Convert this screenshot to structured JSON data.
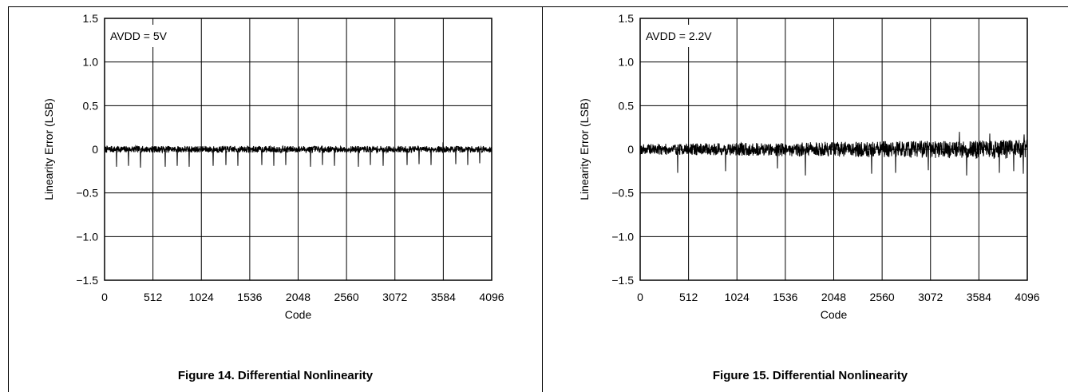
{
  "chart_data": [
    {
      "type": "line",
      "title": "Figure 14. Differential Nonlinearity",
      "annotation": "AVDD = 5V",
      "xlabel": "Code",
      "ylabel": "Linearity Error (LSB)",
      "xlim": [
        0,
        4096
      ],
      "ylim": [
        -1.5,
        1.5
      ],
      "x_ticks": [
        "0",
        "512",
        "1024",
        "1536",
        "2048",
        "2560",
        "3072",
        "3584",
        "4096"
      ],
      "y_ticks": [
        "1.5",
        "1.0",
        "0.5",
        "0",
        "−0.5",
        "−1.0",
        "−1.5"
      ],
      "grid": true,
      "series": [
        {
          "values_description_free": true,
          "noise_band": [
            -0.05,
            0.05
          ],
          "spikes": [
            {
              "x": 128,
              "y": -0.2
            },
            {
              "x": 256,
              "y": -0.19
            },
            {
              "x": 384,
              "y": -0.21
            },
            {
              "x": 640,
              "y": -0.2
            },
            {
              "x": 768,
              "y": -0.19
            },
            {
              "x": 896,
              "y": -0.2
            },
            {
              "x": 1152,
              "y": -0.19
            },
            {
              "x": 1280,
              "y": -0.18
            },
            {
              "x": 1408,
              "y": -0.19
            },
            {
              "x": 1664,
              "y": -0.18
            },
            {
              "x": 1792,
              "y": -0.19
            },
            {
              "x": 1920,
              "y": -0.18
            },
            {
              "x": 2176,
              "y": -0.2
            },
            {
              "x": 2304,
              "y": -0.18
            },
            {
              "x": 2432,
              "y": -0.19
            },
            {
              "x": 2688,
              "y": -0.2
            },
            {
              "x": 2816,
              "y": -0.18
            },
            {
              "x": 2944,
              "y": -0.19
            },
            {
              "x": 3200,
              "y": -0.18
            },
            {
              "x": 3328,
              "y": -0.17
            },
            {
              "x": 3456,
              "y": -0.18
            },
            {
              "x": 3712,
              "y": -0.17
            },
            {
              "x": 3840,
              "y": -0.18
            },
            {
              "x": 3968,
              "y": -0.16
            },
            {
              "x": 3580,
              "y": 0.08
            }
          ]
        }
      ]
    },
    {
      "type": "line",
      "title": "Figure 15. Differential Nonlinearity",
      "annotation": "AVDD = 2.2V",
      "xlabel": "Code",
      "ylabel": "Linearity Error (LSB)",
      "xlim": [
        0,
        4096
      ],
      "ylim": [
        -1.5,
        1.5
      ],
      "x_ticks": [
        "0",
        "512",
        "1024",
        "1536",
        "2048",
        "2560",
        "3072",
        "3584",
        "4096"
      ],
      "y_ticks": [
        "1.5",
        "1.0",
        "0.5",
        "0",
        "−0.5",
        "−1.0",
        "−1.5"
      ],
      "grid": true,
      "series": [
        {
          "noise_band_start": [
            -0.08,
            0.08
          ],
          "noise_band_end": [
            -0.15,
            0.15
          ],
          "spikes": [
            {
              "x": 400,
              "y": -0.27
            },
            {
              "x": 900,
              "y": -0.25
            },
            {
              "x": 1450,
              "y": -0.22
            },
            {
              "x": 1750,
              "y": -0.3
            },
            {
              "x": 2450,
              "y": -0.28
            },
            {
              "x": 2700,
              "y": -0.27
            },
            {
              "x": 3050,
              "y": -0.24
            },
            {
              "x": 3450,
              "y": -0.3
            },
            {
              "x": 3800,
              "y": -0.27
            },
            {
              "x": 3950,
              "y": -0.25
            },
            {
              "x": 4050,
              "y": -0.28
            },
            {
              "x": 3380,
              "y": 0.2
            },
            {
              "x": 3700,
              "y": 0.18
            },
            {
              "x": 4060,
              "y": 0.17
            }
          ]
        }
      ]
    }
  ]
}
